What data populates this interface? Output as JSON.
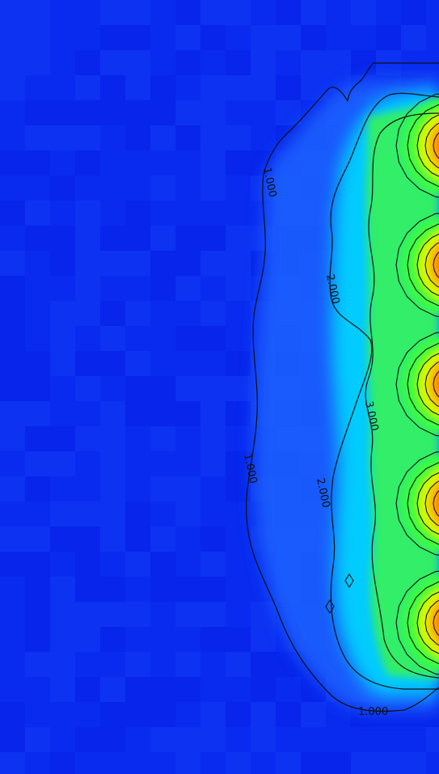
{
  "chart_data": {
    "type": "heatmap",
    "title": "",
    "xlabel": "",
    "ylabel": "",
    "colormap": [
      "#0018ff",
      "#0066ff",
      "#00c8ff",
      "#00ffd0",
      "#3cff3c",
      "#d8ff00",
      "#ffb000",
      "#ff5a00"
    ],
    "background_color": "#0a2cf0",
    "contours": [
      {
        "level": 1.0,
        "label": "1.000"
      },
      {
        "level": 2.0,
        "label": "2.000"
      },
      {
        "level": 3.0,
        "label": "3.000"
      }
    ],
    "contour_labels": [
      "1.000",
      "1.000",
      "1.000",
      "2.000",
      "2.000",
      "3.000"
    ],
    "hotspots": [
      {
        "peak_level": "high"
      },
      {
        "peak_level": "high"
      },
      {
        "peak_level": "high"
      },
      {
        "peak_level": "high"
      },
      {
        "peak_level": "high"
      }
    ]
  }
}
